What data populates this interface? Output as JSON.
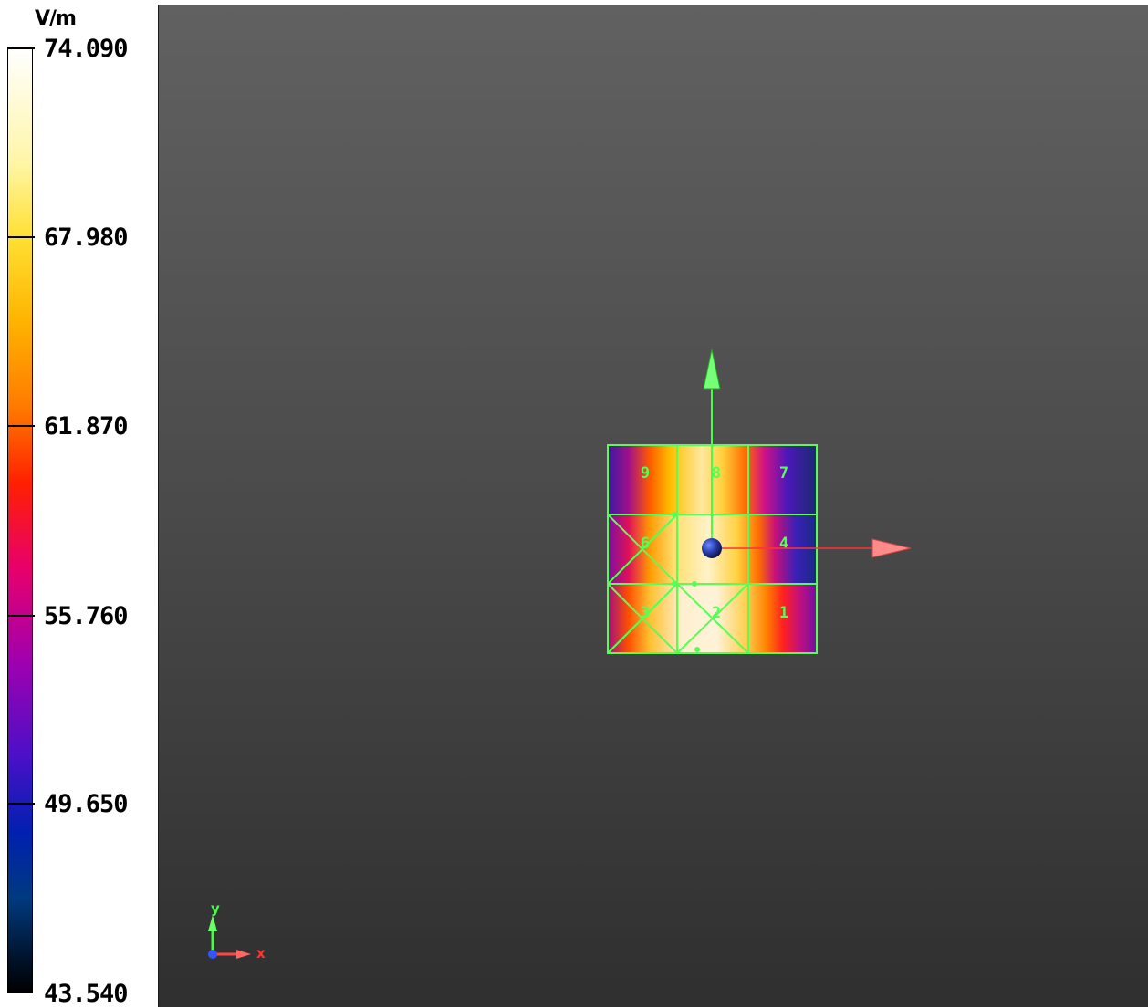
{
  "legend": {
    "unit": "V/m",
    "labels": [
      "74.090",
      "67.980",
      "61.870",
      "55.760",
      "49.650",
      "43.540"
    ]
  },
  "model": {
    "patch_labels": [
      "9",
      "8",
      "7",
      "6",
      "4",
      "3",
      "2",
      "1"
    ]
  },
  "triad": {
    "y_label": "y",
    "x_label": "x"
  },
  "colors": {
    "grid": "#55ff55",
    "x_axis": "#ff3333",
    "y_axis": "#44ff44",
    "z_axis": "#3355ff"
  }
}
